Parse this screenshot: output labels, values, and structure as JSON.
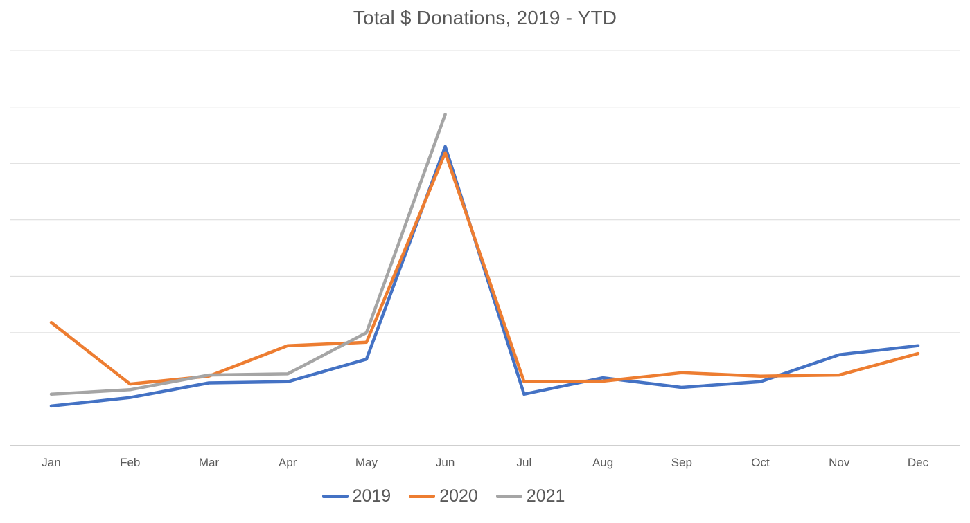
{
  "chart_data": {
    "type": "line",
    "title": "Total $ Donations, 2019 - YTD",
    "categories": [
      "Jan",
      "Feb",
      "Mar",
      "Apr",
      "May",
      "Jun",
      "Jul",
      "Aug",
      "Sep",
      "Oct",
      "Nov",
      "Dec"
    ],
    "series": [
      {
        "name": "2019",
        "color": "#4472C4",
        "values": [
          0.7,
          0.85,
          1.11,
          1.13,
          1.53,
          5.3,
          0.91,
          1.2,
          1.03,
          1.13,
          1.61,
          1.77
        ]
      },
      {
        "name": "2020",
        "color": "#ED7D31",
        "values": [
          2.18,
          1.09,
          1.23,
          1.77,
          1.83,
          5.19,
          1.13,
          1.14,
          1.29,
          1.23,
          1.25,
          1.63
        ]
      },
      {
        "name": "2021",
        "color": "#A5A5A5",
        "values": [
          0.91,
          0.99,
          1.25,
          1.27,
          2.0,
          5.87
        ]
      }
    ],
    "xlabel": "",
    "ylabel": "",
    "ylim": [
      0,
      7
    ],
    "y_axis_tick_labels_visible": false,
    "y_values_unit": "gridline-intervals",
    "gridlines": {
      "horizontal": true,
      "vertical": false,
      "interval_count": 7
    },
    "legend": {
      "position": "bottom"
    }
  },
  "style": {
    "background": "#FFFFFF",
    "text_color": "#595959",
    "gridline_color": "#D9D9D9",
    "axis_line_color": "#BFBFBF"
  }
}
